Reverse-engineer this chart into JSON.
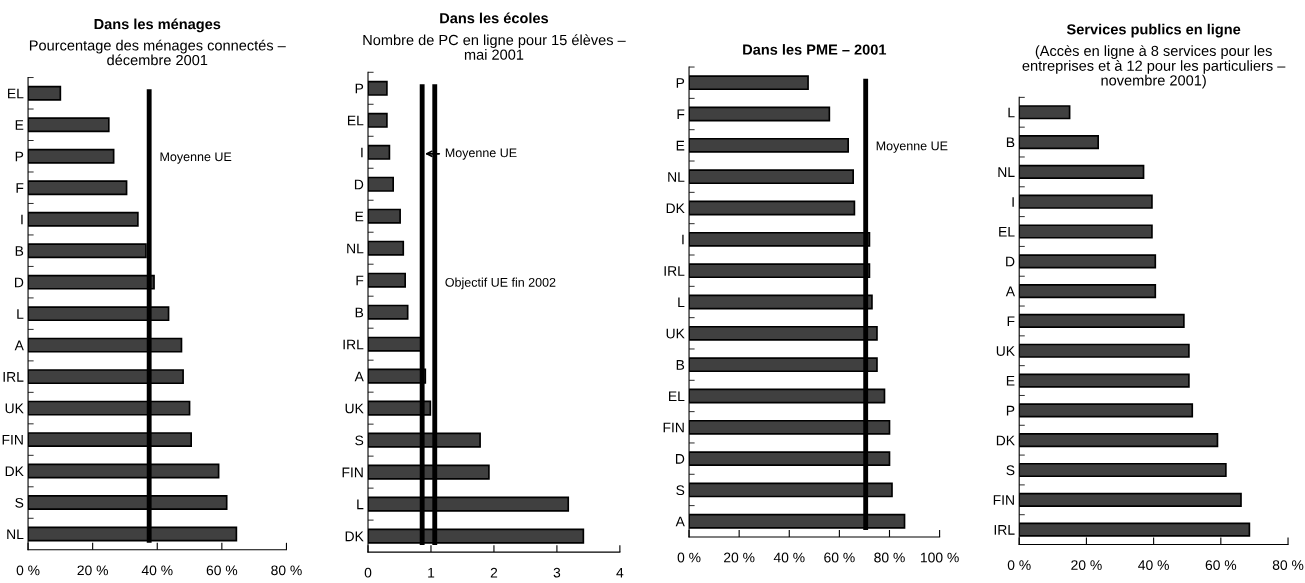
{
  "chart_data": [
    {
      "type": "bar",
      "orientation": "horizontal",
      "title": "Dans les ménages",
      "subtitle": "Pourcentage des ménages connectés –\ndécembre 2001",
      "categories": [
        "EL",
        "E",
        "P",
        "F",
        "I",
        "B",
        "D",
        "L",
        "A",
        "IRL",
        "UK",
        "FIN",
        "DK",
        "S",
        "NL"
      ],
      "values": [
        10,
        25,
        26.5,
        30.5,
        34,
        36.5,
        39,
        43.5,
        47.5,
        48,
        50,
        50.5,
        59,
        61.5,
        64.5
      ],
      "color": "#404040",
      "xlim": [
        0,
        80
      ],
      "xticks": [
        {
          "value": 0,
          "label": "0 %"
        },
        {
          "value": 20,
          "label": "20 %"
        },
        {
          "value": 40,
          "label": "40 %"
        },
        {
          "value": 60,
          "label": "60 %"
        },
        {
          "value": 80,
          "label": "80 %"
        }
      ],
      "ref_lines": [
        {
          "axis": "x",
          "value": 37.5,
          "label": "Moyenne UE",
          "color": "#000000"
        }
      ]
    },
    {
      "type": "bar",
      "orientation": "horizontal",
      "title": "Dans les écoles",
      "subtitle": "Nombre de PC en ligne pour 15 élèves –\nmai 2001",
      "categories": [
        "P",
        "EL",
        "I",
        "D",
        "E",
        "NL",
        "F",
        "B",
        "IRL",
        "A",
        "UK",
        "S",
        "FIN",
        "L",
        "DK"
      ],
      "values": [
        0.3,
        0.3,
        0.34,
        0.4,
        0.51,
        0.56,
        0.59,
        0.63,
        0.84,
        0.91,
        0.99,
        1.78,
        1.92,
        3.18,
        3.42
      ],
      "color": "#404040",
      "xlim": [
        0,
        4
      ],
      "xticks": [
        0,
        1,
        2,
        3,
        4
      ],
      "ref_lines": [
        {
          "axis": "x",
          "value": 0.86,
          "label": "Moyenne UE",
          "color": "#000000"
        },
        {
          "axis": "x",
          "value": 1.06,
          "label": "Objectif UE fin 2002",
          "color": "#000000"
        }
      ]
    },
    {
      "type": "bar",
      "orientation": "horizontal",
      "title": "Dans les PME – 2001",
      "categories": [
        "P",
        "F",
        "E",
        "NL",
        "DK",
        "I",
        "IRL",
        "L",
        "UK",
        "B",
        "EL",
        "FIN",
        "D",
        "S",
        "A"
      ],
      "values": [
        47.5,
        56,
        63.5,
        65.5,
        66,
        72,
        72,
        73,
        75,
        75,
        78,
        80,
        80,
        81,
        86
      ],
      "color": "#404040",
      "xlim": [
        0,
        100
      ],
      "xticks": [
        {
          "value": 0,
          "label": "0 %"
        },
        {
          "value": 20,
          "label": "20 %"
        },
        {
          "value": 40,
          "label": "40 %"
        },
        {
          "value": 60,
          "label": "60 %"
        },
        {
          "value": 80,
          "label": "80 %"
        },
        {
          "value": 100,
          "label": "100 %"
        }
      ],
      "ref_lines": [
        {
          "axis": "x",
          "value": 70.5,
          "label": "Moyenne UE",
          "color": "#000000"
        }
      ]
    },
    {
      "type": "bar",
      "orientation": "horizontal",
      "title": "Services publics en ligne",
      "subtitle": "(Accès en ligne à 8 services pour les\nentreprises et à 12 pour les particuliers –\nnovembre 2001)",
      "categories": [
        "L",
        "B",
        "NL",
        "I",
        "EL",
        "D",
        "A",
        "F",
        "UK",
        "E",
        "P",
        "DK",
        "S",
        "FIN",
        "IRL"
      ],
      "values": [
        15,
        23.5,
        37,
        39.5,
        39.5,
        40.5,
        40.5,
        49,
        50.5,
        50.5,
        51.5,
        59,
        61.5,
        66,
        68.5
      ],
      "color": "#404040",
      "xlim": [
        0,
        80
      ],
      "xticks": [
        {
          "value": 0,
          "label": "0 %"
        },
        {
          "value": 20,
          "label": "20 %"
        },
        {
          "value": 40,
          "label": "40 %"
        },
        {
          "value": 60,
          "label": "60 %"
        },
        {
          "value": 80,
          "label": "80 %"
        }
      ]
    }
  ]
}
